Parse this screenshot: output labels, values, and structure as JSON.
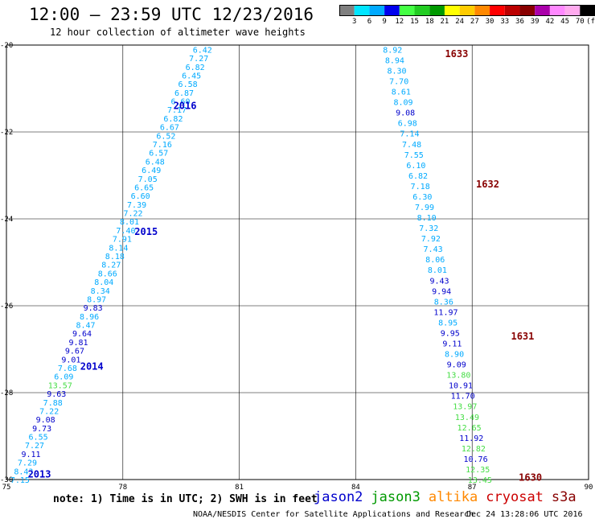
{
  "header": {
    "title": "12:00 – 23:59 UTC 12/23/2016",
    "subtitle": "12 hour collection of altimeter wave heights"
  },
  "colorbar": {
    "colors": [
      "#7f7f7f",
      "#00e5ff",
      "#00aaff",
      "#0000ee",
      "#44ff44",
      "#22cc22",
      "#009900",
      "#ffff00",
      "#ffcc00",
      "#ff8800",
      "#ff0000",
      "#bb0000",
      "#880000",
      "#aa00aa",
      "#ff88ff",
      "#ffaaee",
      "#000000"
    ],
    "labels": [
      "3",
      "6",
      "9",
      "12",
      "15",
      "18",
      "21",
      "24",
      "27",
      "30",
      "33",
      "36",
      "39",
      "42",
      "45",
      "70",
      "(ft)"
    ]
  },
  "map": {
    "lon_ticks": [
      {
        "v": 75,
        "t": "75"
      },
      {
        "v": 78,
        "t": "78"
      },
      {
        "v": 81,
        "t": "81"
      },
      {
        "v": 84,
        "t": "84"
      },
      {
        "v": 87,
        "t": "87"
      },
      {
        "v": 90,
        "t": "90"
      }
    ],
    "lat_ticks": [
      {
        "v": -20,
        "t": "-20"
      },
      {
        "v": -22,
        "t": "-22"
      },
      {
        "v": -24,
        "t": "-24"
      },
      {
        "v": -26,
        "t": "-26"
      },
      {
        "v": -28,
        "t": "-28"
      },
      {
        "v": -30,
        "t": "-30"
      }
    ]
  },
  "tracks": [
    {
      "name": "track-west",
      "start": [
        80.05,
        -20.1
      ],
      "end": [
        75.35,
        -30.0
      ],
      "values": [
        {
          "t": "6.42",
          "c": "#00aaff"
        },
        {
          "t": "7.27",
          "c": "#00aaff"
        },
        {
          "t": "6.82",
          "c": "#00aaff"
        },
        {
          "t": "6.45",
          "c": "#00aaff"
        },
        {
          "t": "6.58",
          "c": "#00aaff"
        },
        {
          "t": "6.87",
          "c": "#00aaff"
        },
        {
          "t": "6.60",
          "c": "#00aaff"
        },
        {
          "t": "7.17",
          "c": "#00aaff"
        },
        {
          "t": "6.82",
          "c": "#00aaff"
        },
        {
          "t": "6.67",
          "c": "#00aaff"
        },
        {
          "t": "6.52",
          "c": "#00aaff"
        },
        {
          "t": "7.16",
          "c": "#00aaff"
        },
        {
          "t": "6.57",
          "c": "#00aaff"
        },
        {
          "t": "6.48",
          "c": "#00aaff"
        },
        {
          "t": "6.49",
          "c": "#00aaff"
        },
        {
          "t": "7.05",
          "c": "#00aaff"
        },
        {
          "t": "6.65",
          "c": "#00aaff"
        },
        {
          "t": "6.60",
          "c": "#00aaff"
        },
        {
          "t": "7.39",
          "c": "#00aaff"
        },
        {
          "t": "7.22",
          "c": "#00aaff"
        },
        {
          "t": "8.01",
          "c": "#00aaff"
        },
        {
          "t": "7.40",
          "c": "#00aaff"
        },
        {
          "t": "7.91",
          "c": "#00aaff"
        },
        {
          "t": "8.14",
          "c": "#00aaff"
        },
        {
          "t": "8.18",
          "c": "#00aaff"
        },
        {
          "t": "8.27",
          "c": "#00aaff"
        },
        {
          "t": "8.66",
          "c": "#00aaff"
        },
        {
          "t": "8.04",
          "c": "#00aaff"
        },
        {
          "t": "8.34",
          "c": "#00aaff"
        },
        {
          "t": "8.97",
          "c": "#00aaff"
        },
        {
          "t": "9.83",
          "c": "#0000cc"
        },
        {
          "t": "8.96",
          "c": "#00aaff"
        },
        {
          "t": "8.47",
          "c": "#00aaff"
        },
        {
          "t": "9.64",
          "c": "#0000cc"
        },
        {
          "t": "9.81",
          "c": "#0000cc"
        },
        {
          "t": "9.67",
          "c": "#0000cc"
        },
        {
          "t": "9.01",
          "c": "#0000cc"
        },
        {
          "t": "7.68",
          "c": "#00aaff"
        },
        {
          "t": "6.09",
          "c": "#00aaff"
        },
        {
          "t": "13.57",
          "c": "#44dd44"
        },
        {
          "t": "9.63",
          "c": "#0000cc"
        },
        {
          "t": "7.88",
          "c": "#00aaff"
        },
        {
          "t": "7.22",
          "c": "#00aaff"
        },
        {
          "t": "9.08",
          "c": "#0000cc"
        },
        {
          "t": "9.73",
          "c": "#0000cc"
        },
        {
          "t": "6.55",
          "c": "#00aaff"
        },
        {
          "t": "7.27",
          "c": "#00aaff"
        },
        {
          "t": "9.11",
          "c": "#0000cc"
        },
        {
          "t": "7.29",
          "c": "#00aaff"
        },
        {
          "t": "8.43",
          "c": "#00aaff"
        },
        {
          "t": "7.15",
          "c": "#00aaff"
        }
      ]
    },
    {
      "name": "track-east",
      "start": [
        84.95,
        -20.1
      ],
      "end": [
        87.2,
        -30.0
      ],
      "values": [
        {
          "t": "8.92",
          "c": "#00aaff"
        },
        {
          "t": "8.94",
          "c": "#00aaff"
        },
        {
          "t": "8.30",
          "c": "#00aaff"
        },
        {
          "t": "7.70",
          "c": "#00aaff"
        },
        {
          "t": "8.61",
          "c": "#00aaff"
        },
        {
          "t": "8.09",
          "c": "#00aaff"
        },
        {
          "t": "9.08",
          "c": "#0000cc"
        },
        {
          "t": "6.98",
          "c": "#00aaff"
        },
        {
          "t": "7.14",
          "c": "#00aaff"
        },
        {
          "t": "7.48",
          "c": "#00aaff"
        },
        {
          "t": "7.55",
          "c": "#00aaff"
        },
        {
          "t": "6.10",
          "c": "#00aaff"
        },
        {
          "t": "6.82",
          "c": "#00aaff"
        },
        {
          "t": "7.18",
          "c": "#00aaff"
        },
        {
          "t": "6.30",
          "c": "#00aaff"
        },
        {
          "t": "7.99",
          "c": "#00aaff"
        },
        {
          "t": "8.10",
          "c": "#00aaff"
        },
        {
          "t": "7.32",
          "c": "#00aaff"
        },
        {
          "t": "7.92",
          "c": "#00aaff"
        },
        {
          "t": "7.43",
          "c": "#00aaff"
        },
        {
          "t": "8.06",
          "c": "#00aaff"
        },
        {
          "t": "8.01",
          "c": "#00aaff"
        },
        {
          "t": "9.43",
          "c": "#0000cc"
        },
        {
          "t": "9.94",
          "c": "#0000cc"
        },
        {
          "t": "8.36",
          "c": "#00aaff"
        },
        {
          "t": "11.97",
          "c": "#0000cc"
        },
        {
          "t": "8.95",
          "c": "#00aaff"
        },
        {
          "t": "9.95",
          "c": "#0000cc"
        },
        {
          "t": "9.11",
          "c": "#0000cc"
        },
        {
          "t": "8.90",
          "c": "#00aaff"
        },
        {
          "t": "9.09",
          "c": "#0000cc"
        },
        {
          "t": "13.80",
          "c": "#44dd44"
        },
        {
          "t": "10.91",
          "c": "#0000cc"
        },
        {
          "t": "11.70",
          "c": "#0000cc"
        },
        {
          "t": "13.97",
          "c": "#44dd44"
        },
        {
          "t": "13.49",
          "c": "#44dd44"
        },
        {
          "t": "12.65",
          "c": "#44dd44"
        },
        {
          "t": "11.92",
          "c": "#0000cc"
        },
        {
          "t": "12.82",
          "c": "#44dd44"
        },
        {
          "t": "10.76",
          "c": "#0000cc"
        },
        {
          "t": "12.35",
          "c": "#44dd44"
        },
        {
          "t": "13.45",
          "c": "#44dd44"
        }
      ]
    }
  ],
  "time_labels": [
    {
      "t": "2016",
      "c": "#0000cc",
      "lon": 79.6,
      "lat": -21.4
    },
    {
      "t": "2015",
      "c": "#0000cc",
      "lon": 78.6,
      "lat": -24.3
    },
    {
      "t": "2014",
      "c": "#0000cc",
      "lon": 77.2,
      "lat": -27.4
    },
    {
      "t": "2013",
      "c": "#0000cc",
      "lon": 75.85,
      "lat": -29.88
    },
    {
      "t": "1633",
      "c": "#880000",
      "lon": 86.6,
      "lat": -20.2
    },
    {
      "t": "1632",
      "c": "#880000",
      "lon": 87.4,
      "lat": -23.2
    },
    {
      "t": "1631",
      "c": "#880000",
      "lon": 88.3,
      "lat": -26.7
    },
    {
      "t": "1630",
      "c": "#880000",
      "lon": 88.5,
      "lat": -29.95
    }
  ],
  "footer": {
    "note": "note: 1) Time is in UTC; 2) SWH is in feet",
    "legend": [
      {
        "t": "jason2",
        "c": "#0000cc"
      },
      {
        "t": "jason3",
        "c": "#009900"
      },
      {
        "t": "altika",
        "c": "#ff8800"
      },
      {
        "t": "cryosat",
        "c": "#cc0000"
      },
      {
        "t": "s3a",
        "c": "#880000"
      }
    ],
    "credit": "NOAA/NESDIS Center for Satellite Applications and Research",
    "timestamp": "Dec 24 13:28:06 UTC 2016"
  }
}
